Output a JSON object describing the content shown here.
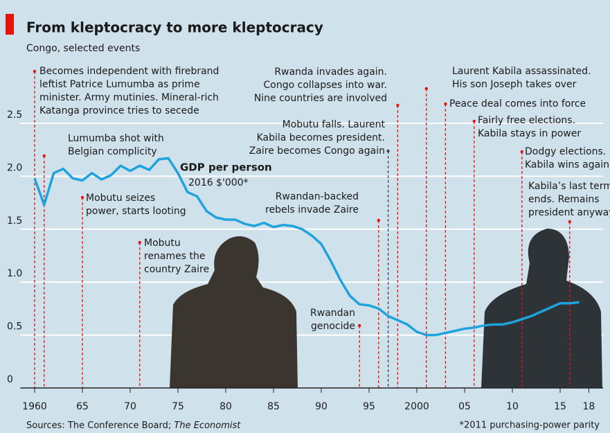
{
  "chart_data": {
    "type": "line",
    "title": "From kleptocracy to more kleptocracy",
    "subtitle": "Congo, selected events",
    "series_label": "GDP per person",
    "series_unit": "2016 $'000*",
    "source": "Sources: The Conference Board; ",
    "source_italic": "The Economist",
    "note": "*2011 purchasing-power parity",
    "color": "#1fa3dc",
    "grid": true,
    "xlim": [
      1958.5,
      2019.5
    ],
    "ylim": [
      0,
      3
    ],
    "xticks": [
      1960,
      {
        "value": 1965,
        "label": "65"
      },
      {
        "value": 1970,
        "label": "70"
      },
      {
        "value": 1975,
        "label": "75"
      },
      {
        "value": 1980,
        "label": "80"
      },
      {
        "value": 1985,
        "label": "85"
      },
      {
        "value": 1990,
        "label": "90"
      },
      {
        "value": 1995,
        "label": "95"
      },
      2000,
      {
        "value": 2005,
        "label": "05"
      },
      {
        "value": 2010,
        "label": "10"
      },
      {
        "value": 2015,
        "label": "15"
      },
      {
        "value": 2018,
        "label": "18"
      }
    ],
    "yticks": [
      0,
      0.5,
      {
        "value": 1,
        "label": "1.0"
      },
      1.5,
      {
        "value": 2,
        "label": "2.0"
      },
      2.5
    ],
    "x": [
      1960,
      1961,
      1962,
      1963,
      1964,
      1965,
      1966,
      1967,
      1968,
      1969,
      1970,
      1971,
      1972,
      1973,
      1974,
      1975,
      1976,
      1977,
      1978,
      1979,
      1980,
      1981,
      1982,
      1983,
      1984,
      1985,
      1986,
      1987,
      1988,
      1989,
      1990,
      1991,
      1992,
      1993,
      1994,
      1995,
      1996,
      1997,
      1998,
      1999,
      2000,
      2001,
      2002,
      2003,
      2004,
      2005,
      2006,
      2007,
      2008,
      2009,
      2010,
      2011,
      2012,
      2013,
      2014,
      2015,
      2016,
      2017
    ],
    "values": [
      1.98,
      1.73,
      2.03,
      2.07,
      1.98,
      1.96,
      2.03,
      1.97,
      2.01,
      2.1,
      2.05,
      2.1,
      2.06,
      2.16,
      2.17,
      2.03,
      1.85,
      1.81,
      1.67,
      1.61,
      1.59,
      1.59,
      1.55,
      1.53,
      1.56,
      1.52,
      1.54,
      1.53,
      1.5,
      1.44,
      1.36,
      1.2,
      1.02,
      0.87,
      0.79,
      0.78,
      0.75,
      0.68,
      0.64,
      0.6,
      0.53,
      0.5,
      0.5,
      0.52,
      0.54,
      0.56,
      0.57,
      0.59,
      0.6,
      0.6,
      0.62,
      0.65,
      0.68,
      0.72,
      0.76,
      0.8,
      0.8,
      0.81
    ],
    "events": [
      {
        "year": 1960,
        "color": "#e3120b",
        "lines": [
          "Becomes independent with firebrand",
          "leftist Patrice Lumumba as prime",
          "minister. Army mutinies. Mineral-rich",
          "Katanga province tries to secede"
        ]
      },
      {
        "year": 1961,
        "color": "#e3120b",
        "lines": [
          "Lumumba shot with",
          "Belgian complicity"
        ]
      },
      {
        "year": 1965,
        "color": "#e3120b",
        "lines": [
          "Mobutu seizes",
          "power, starts looting"
        ]
      },
      {
        "year": 1971,
        "color": "#e3120b",
        "lines": [
          "Mobutu",
          "renames the",
          "country Zaire"
        ]
      },
      {
        "year": 1994,
        "color": "#e3120b",
        "lines": [
          "Rwandan",
          "genocide"
        ]
      },
      {
        "year": 1996,
        "color": "#e3120b",
        "lines": [
          "Rwandan-backed",
          "rebels invade Zaire"
        ]
      },
      {
        "year": 1997,
        "color": "#444444",
        "lines": [
          "Mobutu falls. Laurent",
          "Kabila becomes president.",
          "Zaire becomes Congo again"
        ]
      },
      {
        "year": 1998,
        "color": "#e3120b",
        "lines": [
          "Rwanda invades again.",
          "Congo collapses into war.",
          "Nine countries are involved"
        ]
      },
      {
        "year": 2001,
        "color": "#e3120b",
        "lines": [
          "Laurent Kabila assassinated.",
          "His son Joseph takes over"
        ]
      },
      {
        "year": 2003,
        "color": "#e3120b",
        "lines": [
          "Peace deal comes into force"
        ]
      },
      {
        "year": 2006,
        "color": "#e3120b",
        "lines": [
          "Fairly free elections.",
          "Kabila stays in power"
        ]
      },
      {
        "year": 2011,
        "color": "#e3120b",
        "lines": [
          "Dodgy elections.",
          "Kabila wins again"
        ]
      },
      {
        "year": 2016,
        "color": "#e3120b",
        "lines": [
          "Kabila’s last term",
          "ends. Remains",
          "president anyway"
        ]
      }
    ]
  }
}
